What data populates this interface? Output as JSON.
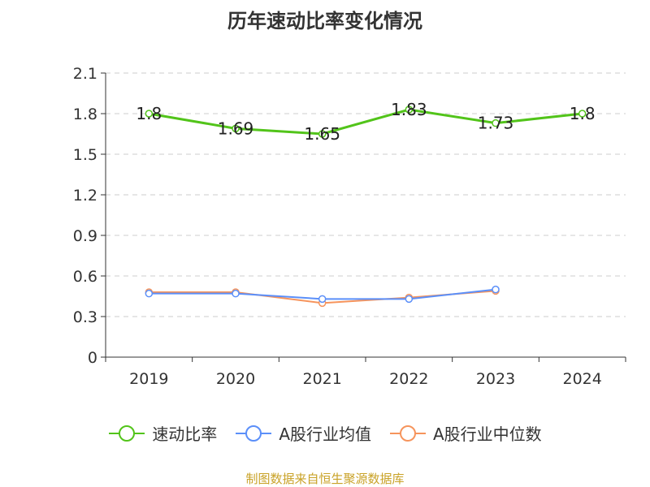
{
  "chart_data": {
    "type": "line",
    "title": "历年速动比率变化情况",
    "categories": [
      "2019",
      "2020",
      "2021",
      "2022",
      "2023",
      "2024"
    ],
    "ylim": [
      0,
      2.1
    ],
    "yticks": [
      "0",
      "0.3",
      "0.6",
      "0.9",
      "1.2",
      "1.5",
      "1.8",
      "2.1"
    ],
    "grid": true,
    "legend_position": "bottom",
    "series": [
      {
        "name": "速动比率",
        "color": "#52c41a",
        "values": [
          1.8,
          1.69,
          1.65,
          1.83,
          1.73,
          1.8
        ],
        "labels": [
          "1.8",
          "1.69",
          "1.65",
          "1.83",
          "1.73",
          "1.8"
        ]
      },
      {
        "name": "A股行业均值",
        "color": "#5b8ff9",
        "values": [
          0.47,
          0.47,
          0.43,
          0.43,
          0.5,
          null
        ],
        "labels": null
      },
      {
        "name": "A股行业中位数",
        "color": "#f6945c",
        "values": [
          0.48,
          0.48,
          0.4,
          0.44,
          0.49,
          null
        ],
        "labels": null
      }
    ]
  },
  "footer": {
    "source": "制图数据来自恒生聚源数据库"
  }
}
